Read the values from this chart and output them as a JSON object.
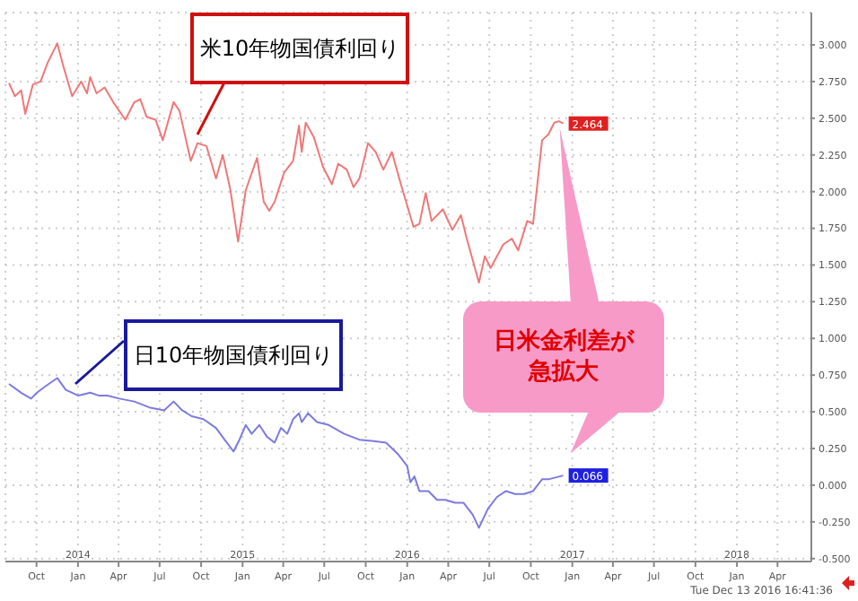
{
  "chart_data": {
    "type": "line",
    "series": [
      {
        "name": "米10年物国債利回り",
        "color": "#f07878",
        "x": [
          "2013-08-01",
          "2013-08-14",
          "2013-08-28",
          "2013-09-06",
          "2013-09-23",
          "2013-10-10",
          "2013-10-26",
          "2013-11-16",
          "2013-11-29",
          "2013-12-19",
          "2014-01-08",
          "2014-01-21",
          "2014-01-28",
          "2014-02-11",
          "2014-03-01",
          "2014-03-20",
          "2014-04-16",
          "2014-05-06",
          "2014-05-19",
          "2014-06-02",
          "2014-06-22",
          "2014-07-08",
          "2014-08-01",
          "2014-08-14",
          "2014-09-08",
          "2014-09-23",
          "2014-10-13",
          "2014-11-03",
          "2014-11-18",
          "2014-12-05",
          "2014-12-22",
          "2015-01-08",
          "2015-02-02",
          "2015-02-17",
          "2015-03-01",
          "2015-03-13",
          "2015-04-03",
          "2015-04-23",
          "2015-05-06",
          "2015-05-12",
          "2015-05-21",
          "2015-06-08",
          "2015-06-28",
          "2015-07-18",
          "2015-08-01",
          "2015-08-20",
          "2015-09-04",
          "2015-09-17",
          "2015-10-06",
          "2015-10-23",
          "2015-11-09",
          "2015-11-28",
          "2015-12-18",
          "2016-01-15",
          "2016-01-28",
          "2016-02-11",
          "2016-02-24",
          "2016-03-20",
          "2016-04-10",
          "2016-04-29",
          "2016-05-12",
          "2016-06-08",
          "2016-06-21",
          "2016-07-04",
          "2016-08-01",
          "2016-08-20",
          "2016-09-03",
          "2016-09-23",
          "2016-10-06",
          "2016-10-26",
          "2016-11-09",
          "2016-11-22",
          "2016-12-02",
          "2016-12-12"
        ],
        "values": [
          2.74,
          2.65,
          2.69,
          2.53,
          2.73,
          2.75,
          2.88,
          3.01,
          2.86,
          2.65,
          2.75,
          2.67,
          2.78,
          2.67,
          2.71,
          2.61,
          2.49,
          2.61,
          2.63,
          2.51,
          2.49,
          2.35,
          2.61,
          2.55,
          2.21,
          2.33,
          2.31,
          2.09,
          2.25,
          2.01,
          1.66,
          2.01,
          2.23,
          1.93,
          1.87,
          1.93,
          2.13,
          2.21,
          2.45,
          2.27,
          2.47,
          2.37,
          2.17,
          2.05,
          2.19,
          2.15,
          2.03,
          2.09,
          2.33,
          2.27,
          2.15,
          2.27,
          2.05,
          1.76,
          1.78,
          1.99,
          1.8,
          1.88,
          1.74,
          1.84,
          1.68,
          1.38,
          1.56,
          1.48,
          1.64,
          1.68,
          1.6,
          1.8,
          1.78,
          2.35,
          2.39,
          2.47,
          2.48,
          2.464
        ],
        "value_labels": [
          null,
          null,
          null,
          null,
          null,
          null,
          null,
          null,
          null,
          null,
          null,
          null,
          null,
          null,
          null,
          null,
          null,
          null,
          null,
          null,
          null,
          null,
          null,
          null,
          null,
          null,
          null,
          null,
          null,
          null,
          null,
          null,
          null,
          null,
          null,
          null,
          null,
          null,
          null,
          null,
          null,
          null,
          null,
          null,
          null,
          null,
          null,
          null,
          null,
          null,
          null,
          null,
          null,
          null,
          null,
          null,
          null,
          null,
          null,
          null,
          null,
          null,
          null,
          null,
          null,
          null,
          null,
          null,
          null,
          null,
          null,
          null,
          null,
          "2.464"
        ]
      },
      {
        "name": "日10年物国債利回り",
        "color": "#7b7be0",
        "x": [
          "2013-08-01",
          "2013-08-28",
          "2013-09-19",
          "2013-10-02",
          "2013-10-19",
          "2013-11-16",
          "2013-12-05",
          "2014-01-02",
          "2014-01-28",
          "2014-02-17",
          "2014-03-07",
          "2014-04-03",
          "2014-05-06",
          "2014-06-08",
          "2014-07-11",
          "2014-08-01",
          "2014-08-20",
          "2014-09-10",
          "2014-10-06",
          "2014-11-03",
          "2014-11-22",
          "2014-12-12",
          "2014-12-25",
          "2015-01-08",
          "2015-01-21",
          "2015-02-07",
          "2015-02-24",
          "2015-03-13",
          "2015-03-27",
          "2015-04-10",
          "2015-04-23",
          "2015-05-06",
          "2015-05-12",
          "2015-05-26",
          "2015-06-15",
          "2015-07-11",
          "2015-08-14",
          "2015-09-17",
          "2015-10-19",
          "2015-11-15",
          "2015-12-12",
          "2016-01-01",
          "2016-01-08",
          "2016-01-17",
          "2016-01-28",
          "2016-02-17",
          "2016-03-07",
          "2016-03-26",
          "2016-04-16",
          "2016-05-05",
          "2016-05-25",
          "2016-06-08",
          "2016-06-28",
          "2016-07-18",
          "2016-08-07",
          "2016-08-27",
          "2016-09-16",
          "2016-10-06",
          "2016-10-26",
          "2016-11-09",
          "2016-12-12"
        ],
        "values": [
          0.69,
          0.63,
          0.59,
          0.63,
          0.67,
          0.73,
          0.65,
          0.61,
          0.63,
          0.61,
          0.61,
          0.59,
          0.57,
          0.53,
          0.51,
          0.57,
          0.51,
          0.47,
          0.45,
          0.39,
          0.31,
          0.23,
          0.31,
          0.41,
          0.35,
          0.41,
          0.33,
          0.29,
          0.39,
          0.35,
          0.45,
          0.49,
          0.43,
          0.49,
          0.43,
          0.41,
          0.35,
          0.31,
          0.3,
          0.29,
          0.21,
          0.13,
          0.02,
          0.06,
          -0.04,
          -0.04,
          -0.1,
          -0.1,
          -0.12,
          -0.12,
          -0.2,
          -0.29,
          -0.16,
          -0.08,
          -0.04,
          -0.06,
          -0.06,
          -0.04,
          0.04,
          0.04,
          0.066
        ],
        "value_labels": [
          null,
          null,
          null,
          null,
          null,
          null,
          null,
          null,
          null,
          null,
          null,
          null,
          null,
          null,
          null,
          null,
          null,
          null,
          null,
          null,
          null,
          null,
          null,
          null,
          null,
          null,
          null,
          null,
          null,
          null,
          null,
          null,
          null,
          null,
          null,
          null,
          null,
          null,
          null,
          null,
          null,
          null,
          null,
          null,
          null,
          null,
          null,
          null,
          null,
          null,
          null,
          null,
          null,
          null,
          null,
          null,
          null,
          null,
          null,
          null,
          "0.066"
        ]
      }
    ],
    "xlim": [
      "2013-07-24",
      "2018-06-15"
    ],
    "xticks": [
      {
        "value": "2013-10-01",
        "label": "Oct"
      },
      {
        "value": "2014-01-01",
        "label": "2014\nJan"
      },
      {
        "value": "2014-04-01",
        "label": "Apr"
      },
      {
        "value": "2014-07-01",
        "label": "Jul"
      },
      {
        "value": "2014-10-01",
        "label": "Oct"
      },
      {
        "value": "2015-01-01",
        "label": "2015\nJan"
      },
      {
        "value": "2015-04-01",
        "label": "Apr"
      },
      {
        "value": "2015-07-01",
        "label": "Jul"
      },
      {
        "value": "2015-10-01",
        "label": "Oct"
      },
      {
        "value": "2016-01-01",
        "label": "2016\nJan"
      },
      {
        "value": "2016-04-01",
        "label": "Apr"
      },
      {
        "value": "2016-07-01",
        "label": "Jul"
      },
      {
        "value": "2016-10-01",
        "label": "Oct"
      },
      {
        "value": "2017-01-01",
        "label": "2017\nJan"
      },
      {
        "value": "2017-04-01",
        "label": "Apr"
      },
      {
        "value": "2017-07-01",
        "label": "Jul"
      },
      {
        "value": "2017-10-01",
        "label": "Oct"
      },
      {
        "value": "2018-01-01",
        "label": "2018\nJan"
      },
      {
        "value": "2018-04-01",
        "label": "Apr"
      }
    ],
    "ylim": [
      -0.52,
      3.22
    ],
    "yticks": [
      {
        "value": -0.5,
        "label": "-0.500"
      },
      {
        "value": -0.25,
        "label": "-0.250"
      },
      {
        "value": 0,
        "label": "0.000"
      },
      {
        "value": 0.25,
        "label": "0.250"
      },
      {
        "value": 0.5,
        "label": "0.500"
      },
      {
        "value": 0.75,
        "label": "0.750"
      },
      {
        "value": 1,
        "label": "1.000"
      },
      {
        "value": 1.25,
        "label": "1.250"
      },
      {
        "value": 1.5,
        "label": "1.500"
      },
      {
        "value": 1.75,
        "label": "1.750"
      },
      {
        "value": 2,
        "label": "2.000"
      },
      {
        "value": 2.25,
        "label": "2.250"
      },
      {
        "value": 2.5,
        "label": "2.500"
      },
      {
        "value": 2.75,
        "label": "2.750"
      },
      {
        "value": 3,
        "label": "3.000"
      }
    ],
    "grid": true,
    "annotations": [
      "日米金利差が急拡大",
      "Tue Dec 13 2016 16:41:36"
    ]
  }
}
